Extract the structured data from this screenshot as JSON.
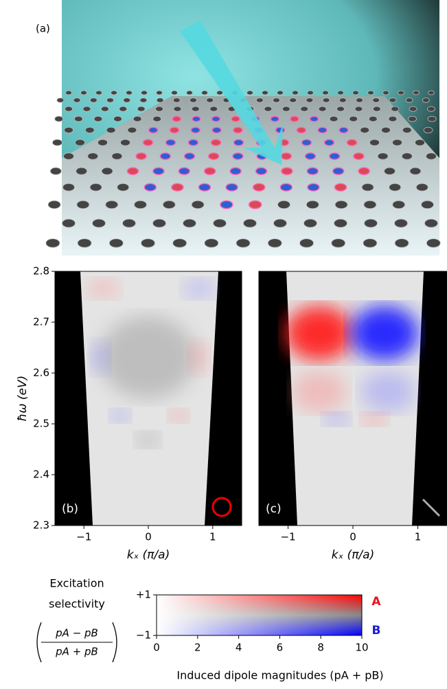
{
  "panel_a": {
    "label": "(a)"
  },
  "chart_data": [
    {
      "type": "heatmap",
      "panel_label": "(b)",
      "ylabel": "ħω (eV)",
      "xlabel": "kₓ (π/a)",
      "xlim": [
        -1.45,
        1.45
      ],
      "ylim": [
        2.3,
        2.8
      ],
      "xticks": [
        {
          "value": -1,
          "label": "−1"
        },
        0,
        1
      ],
      "yticks": [
        2.3,
        2.4,
        2.5,
        2.6,
        2.7,
        2.8
      ]
    },
    {
      "type": "heatmap",
      "panel_label": "(c)",
      "xlabel": "kₓ (π/a)",
      "xlim": [
        -1.45,
        1.45
      ],
      "ylim": [
        2.3,
        2.8
      ],
      "xticks": [
        {
          "value": -1,
          "label": "−1"
        },
        0,
        1
      ]
    }
  ],
  "colorbar": {
    "title_lines": [
      "Excitation",
      "selectivity"
    ],
    "numerator": "pA − pB",
    "denominator": "pA + pB",
    "xlabel": "Induced dipole magnitudes (pA + pB)",
    "xlim": [
      0,
      10
    ],
    "xticks": [
      0,
      2,
      4,
      6,
      8,
      10
    ],
    "ylim": [
      -1,
      1
    ],
    "yticks": [
      {
        "value": 1,
        "label": "+1"
      },
      {
        "value": -1,
        "label": "−1"
      }
    ],
    "top_label": "A",
    "bottom_label": "B",
    "top_color": "#e8141c",
    "bottom_color": "#1a1ad0"
  }
}
